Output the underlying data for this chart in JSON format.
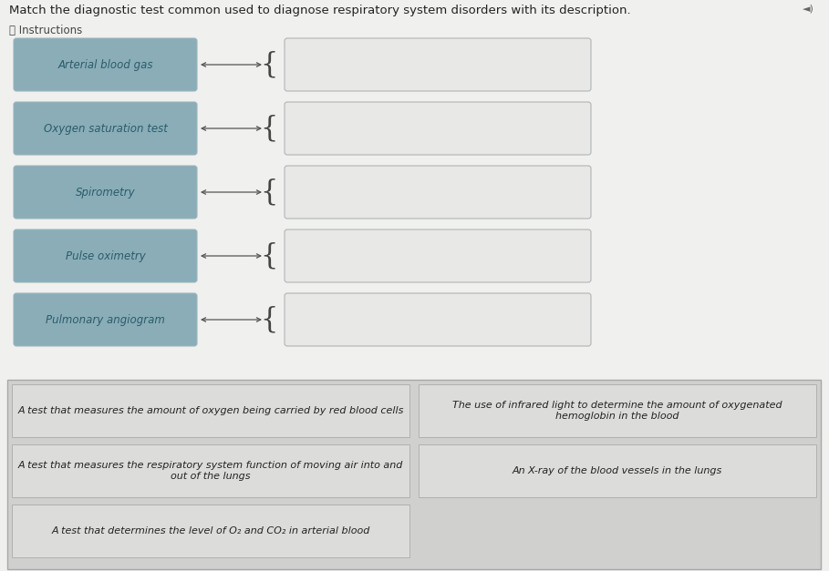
{
  "title": "Match the diagnostic test common used to diagnose respiratory system disorders with its description.",
  "instructions_label": "ⓘ Instructions",
  "page_background": "#f0f0ef",
  "left_items": [
    "Arterial blood gas",
    "Oxygen saturation test",
    "Spirometry",
    "Pulse oximetry",
    "Pulmonary angiogram"
  ],
  "left_box_color": "#8aadb8",
  "left_text_color": "#2a5c6a",
  "right_box_color": "#e8e8e6",
  "right_box_border": "#b0b5b5",
  "bottom_panel_bg": "#d0d0ce",
  "bottom_panel_border": "#a8a8a8",
  "answer_boxes": [
    {
      "text": "A test that measures the amount of oxygen being carried by red blood cells",
      "col": 0,
      "row": 0
    },
    {
      "text": "The use of infrared light to determine the amount of oxygenated\nhemoglobin in the blood",
      "col": 1,
      "row": 0
    },
    {
      "text": "A test that measures the respiratory system function of moving air into and\nout of the lungs",
      "col": 0,
      "row": 1
    },
    {
      "text": "An X-ray of the blood vessels in the lungs",
      "col": 1,
      "row": 1
    },
    {
      "text": "A test that determines the level of O₂ and CO₂ in arterial blood",
      "col": 0,
      "row": 2
    }
  ],
  "arrow_color": "#555555",
  "title_fontsize": 9.5,
  "label_fontsize": 8.5,
  "answer_fontsize": 8.0
}
